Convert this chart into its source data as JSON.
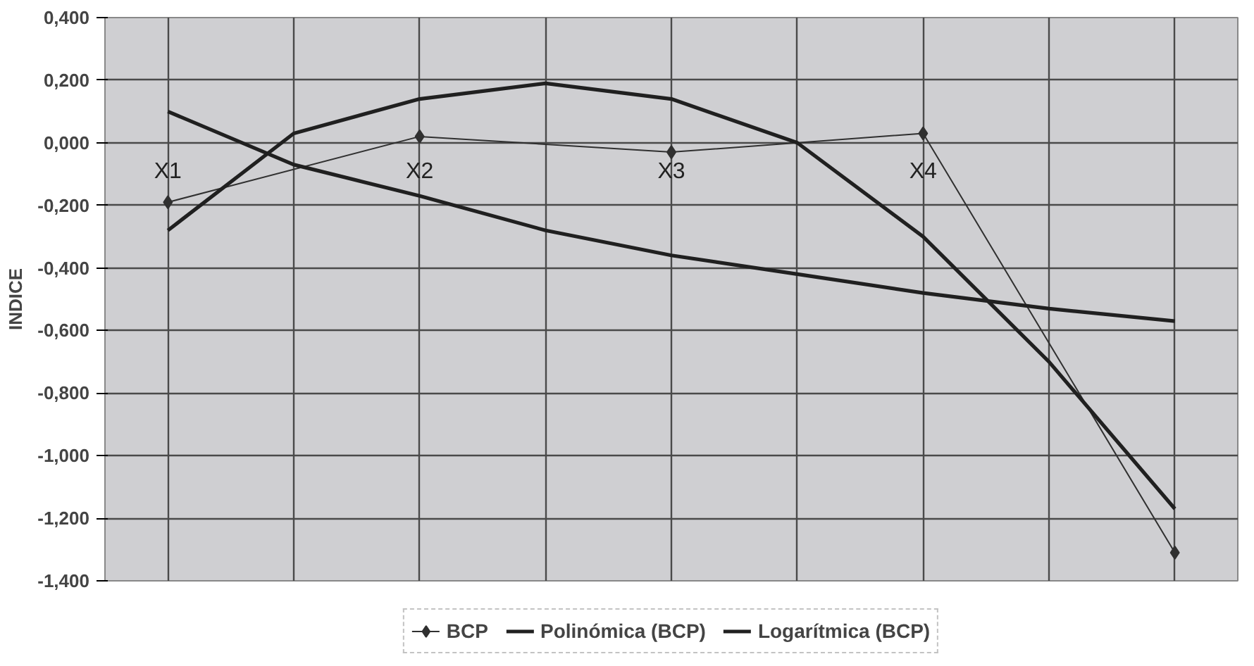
{
  "chart_data": {
    "type": "line",
    "ylabel": "INDICE",
    "categories": [
      "X1",
      null,
      "X2",
      null,
      "X3",
      null,
      "X4",
      null,
      null
    ],
    "ylim": [
      -1.4,
      0.4
    ],
    "yticks": [
      {
        "value": 0.4,
        "label": "0,400"
      },
      {
        "value": 0.2,
        "label": "0,200"
      },
      {
        "value": 0,
        "label": "0,000"
      },
      {
        "value": -0.2,
        "label": "-0,200"
      },
      {
        "value": -0.4,
        "label": "-0,400"
      },
      {
        "value": -0.6,
        "label": "-0,600"
      },
      {
        "value": -0.8,
        "label": "-0,800"
      },
      {
        "value": -1.0,
        "label": "-1,000"
      },
      {
        "value": -1.2,
        "label": "-1,200"
      },
      {
        "value": -1.4,
        "label": "-1,400"
      }
    ],
    "grid": true,
    "legend": "bottom",
    "series": [
      {
        "name": "BCP",
        "color": "#303030",
        "marker": "diamond",
        "values": [
          -0.19,
          null,
          0.02,
          null,
          -0.03,
          null,
          0.03,
          null,
          -1.31
        ]
      },
      {
        "name": "Polinómica (BCP)",
        "color": "#202020",
        "marker": "none",
        "values": [
          -0.28,
          0.03,
          0.14,
          0.19,
          0.14,
          0.0,
          -0.3,
          -0.7,
          -1.17
        ]
      },
      {
        "name": "Logarítmica (BCP)",
        "color": "#202020",
        "marker": "none",
        "values": [
          0.1,
          -0.07,
          -0.17,
          -0.28,
          -0.36,
          -0.42,
          -0.48,
          -0.53,
          -0.57
        ]
      }
    ]
  }
}
